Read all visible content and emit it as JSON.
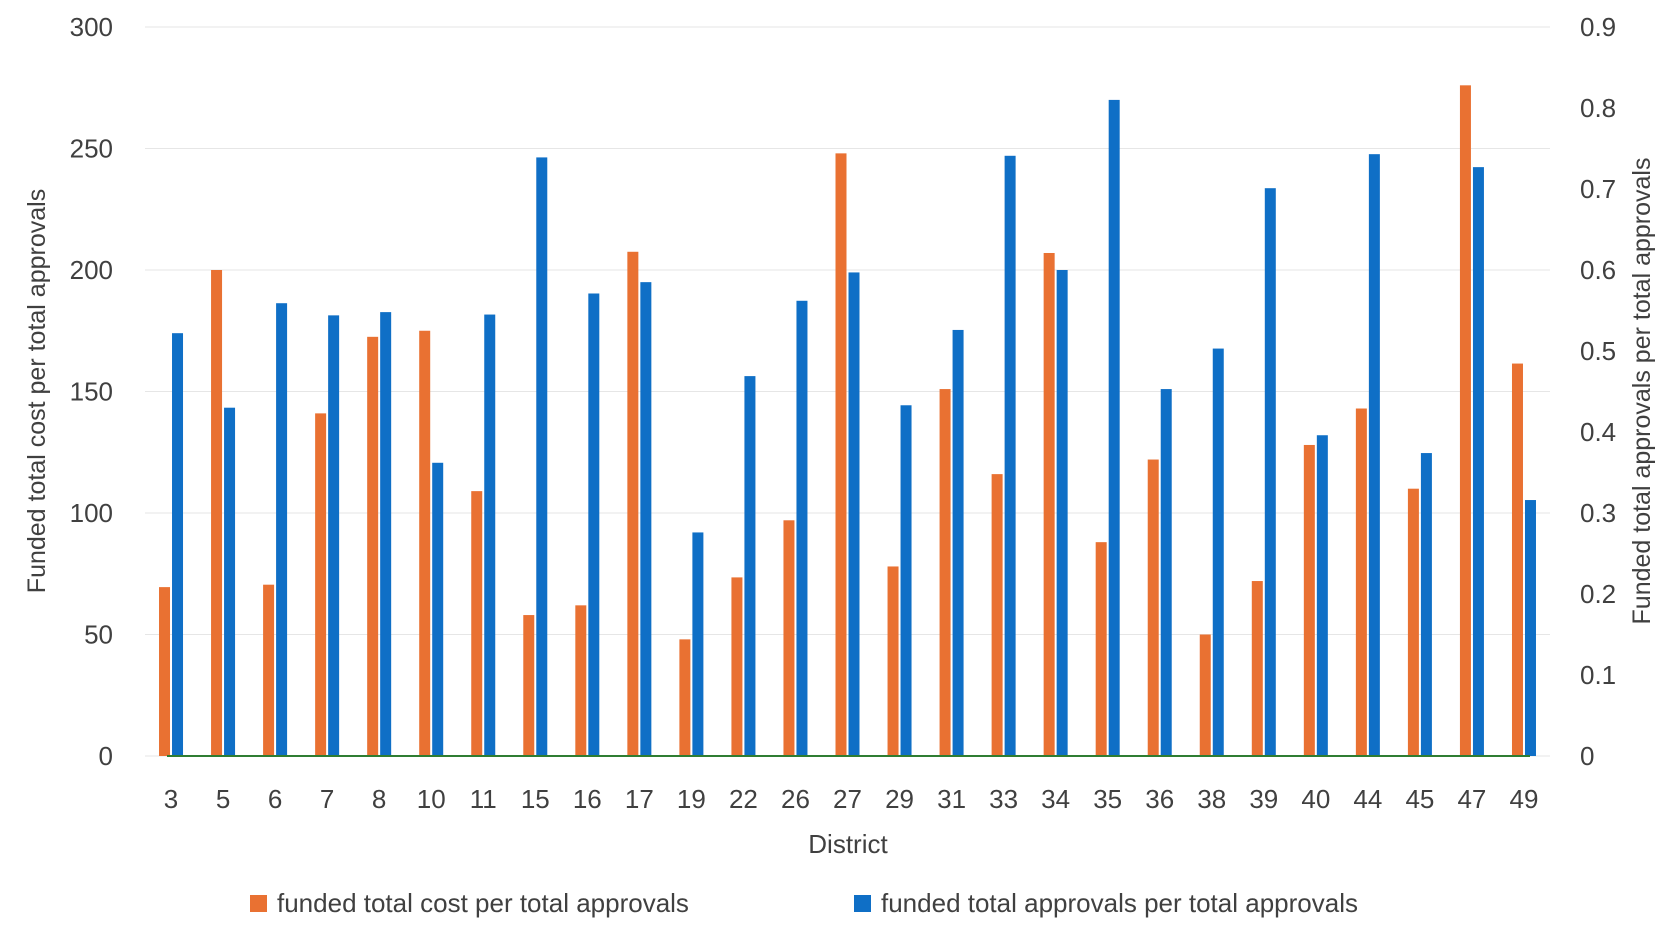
{
  "chart_data": {
    "type": "bar",
    "title": "",
    "xlabel": "District",
    "ylabel": "Funded total cost per total approvals",
    "y2label": "Funded total approvals per total approvals",
    "ylim": [
      0,
      300
    ],
    "y2lim": [
      0,
      0.9
    ],
    "yticks": [
      "0",
      "50",
      "100",
      "150",
      "200",
      "250",
      "300"
    ],
    "y2ticks": [
      "0",
      "0.1",
      "0.2",
      "0.3",
      "0.4",
      "0.5",
      "0.6",
      "0.7",
      "0.8",
      "0.9"
    ],
    "grid": true,
    "legend_position": "bottom",
    "categories": [
      "3",
      "5",
      "6",
      "7",
      "8",
      "10",
      "11",
      "15",
      "16",
      "17",
      "19",
      "22",
      "26",
      "27",
      "29",
      "31",
      "33",
      "34",
      "35",
      "36",
      "38",
      "39",
      "40",
      "44",
      "45",
      "47",
      "49"
    ],
    "series": [
      {
        "name": "funded total cost per total approvals",
        "axis": "left",
        "color": "#E97132",
        "values": [
          69.5,
          200,
          70.5,
          141,
          172.5,
          175,
          109,
          58,
          62,
          207.5,
          48,
          73.5,
          97,
          248,
          78,
          151,
          116,
          207,
          88,
          122,
          50,
          72,
          128,
          143,
          110,
          276,
          161.5
        ]
      },
      {
        "name": "funded total approvals per total approvals",
        "axis": "right",
        "color": "#0F6FC6",
        "values": [
          0.522,
          0.43,
          0.559,
          0.544,
          0.548,
          0.362,
          0.545,
          0.739,
          0.571,
          0.585,
          0.276,
          0.469,
          0.562,
          0.597,
          0.433,
          0.526,
          0.741,
          0.6,
          0.81,
          0.453,
          0.503,
          0.701,
          0.396,
          0.743,
          0.374,
          0.727,
          0.316
        ]
      }
    ]
  }
}
